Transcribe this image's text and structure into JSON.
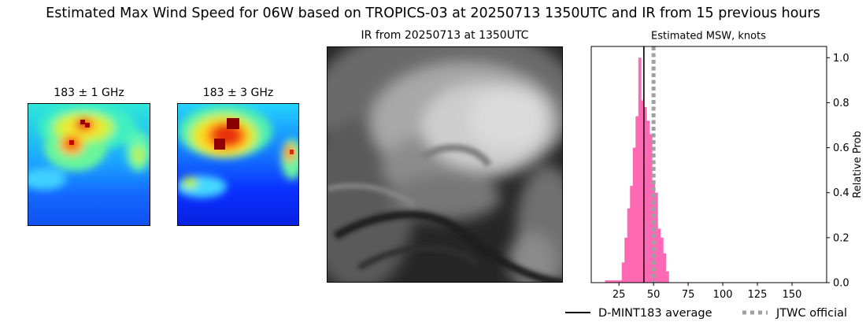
{
  "figure": {
    "title": "Estimated Max Wind Speed for 06W based on TROPICS-03 at 20250713 1350UTC and IR from 15 previous hours"
  },
  "panels": {
    "mw1": {
      "title": "183 ± 1 GHz",
      "colormap": "jet"
    },
    "mw2": {
      "title": "183 ± 3 GHz",
      "colormap": "jet"
    },
    "ir": {
      "title": "IR from 20250713 at 1350UTC",
      "colormap": "gray"
    }
  },
  "chart_data": {
    "type": "bar",
    "title": "Estimated MSW, knots",
    "xlabel": "",
    "ylabel": "Relative Prob",
    "xlim": [
      5,
      175
    ],
    "ylim": [
      0,
      1.05
    ],
    "xticks": [
      25,
      50,
      75,
      100,
      125,
      150
    ],
    "yticks": [
      0.0,
      0.2,
      0.4,
      0.6,
      0.8,
      1.0
    ],
    "ytick_labels": [
      "0.0",
      "0.2",
      "0.4",
      "0.6",
      "0.8",
      "1.0"
    ],
    "y_axis_side": "right",
    "bar_width": 2,
    "bar_color": "#ff69b4",
    "bars": {
      "x": [
        16,
        18,
        20,
        22,
        24,
        26,
        28,
        30,
        32,
        34,
        36,
        38,
        40,
        42,
        44,
        46,
        48,
        50,
        52,
        54,
        56,
        58,
        60
      ],
      "values": [
        0.01,
        0.01,
        0.01,
        0.01,
        0.01,
        0.01,
        0.09,
        0.2,
        0.33,
        0.43,
        0.6,
        0.74,
        1.0,
        0.81,
        0.78,
        0.72,
        0.66,
        0.45,
        0.4,
        0.24,
        0.2,
        0.13,
        0.05
      ]
    },
    "lines": [
      {
        "name": "D-MINT183 average",
        "x": 43,
        "color": "#000000",
        "style": "solid"
      },
      {
        "name": "JTWC official",
        "x": 50,
        "color": "#a0a0a0",
        "style": "dotted"
      }
    ],
    "legend": {
      "placement": "bottom-right"
    }
  }
}
